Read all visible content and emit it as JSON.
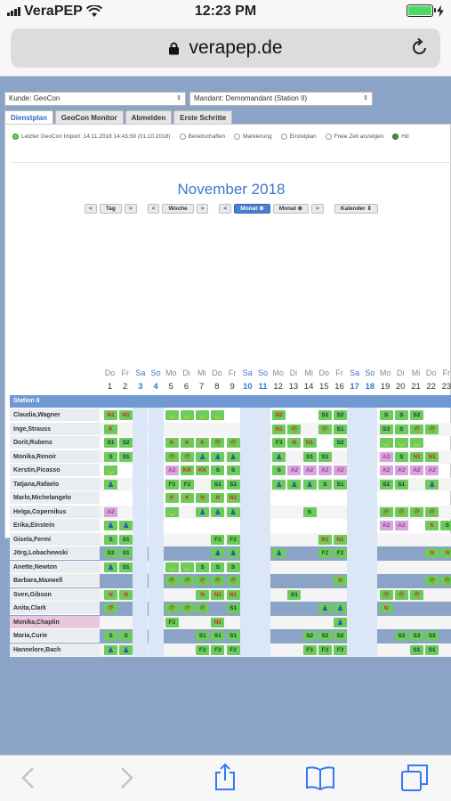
{
  "status_bar": {
    "carrier": "VeraPEP",
    "time": "12:23 PM"
  },
  "browser": {
    "url": "verapep.de"
  },
  "filters": {
    "kunde": "Kunde: GeoCon",
    "mandant": "Mandant: Demomandant (Station II)"
  },
  "tabs": [
    "Dienstplan",
    "GeoCon Monitor",
    "Abmelden",
    "Erste Schritte"
  ],
  "legend": {
    "import": "Letzter GeoCon Import: 14.11.2018 14:43:59 (01.10.2018)",
    "items": [
      "Bereitschaften",
      "Markierung",
      "Einzelplan",
      "Freie Zeit anzeigen",
      "Hd"
    ]
  },
  "calendar": {
    "month": "November 2018",
    "nav": [
      "Tag",
      "Woche",
      "Monat",
      "Monat",
      "Kalender"
    ]
  },
  "days": [
    {
      "n": "1",
      "d": "Do"
    },
    {
      "n": "2",
      "d": "Fr"
    },
    {
      "n": "3",
      "d": "Sa"
    },
    {
      "n": "4",
      "d": "So"
    },
    {
      "n": "5",
      "d": "Mo"
    },
    {
      "n": "6",
      "d": "Di"
    },
    {
      "n": "7",
      "d": "Mi"
    },
    {
      "n": "8",
      "d": "Do"
    },
    {
      "n": "9",
      "d": "Fr"
    },
    {
      "n": "10",
      "d": "Sa"
    },
    {
      "n": "11",
      "d": "So"
    },
    {
      "n": "12",
      "d": "Mo"
    },
    {
      "n": "13",
      "d": "Di"
    },
    {
      "n": "14",
      "d": "Mi"
    },
    {
      "n": "15",
      "d": "Do"
    },
    {
      "n": "16",
      "d": "Fr"
    },
    {
      "n": "17",
      "d": "Sa"
    },
    {
      "n": "18",
      "d": "So"
    },
    {
      "n": "19",
      "d": "Mo"
    },
    {
      "n": "20",
      "d": "Di"
    },
    {
      "n": "21",
      "d": "Mi"
    },
    {
      "n": "22",
      "d": "Do"
    },
    {
      "n": "23",
      "d": "Fr"
    }
  ],
  "station": "Station II",
  "colors": {
    "green": "#6ccb5a",
    "red_text": "#d22",
    "purple_text": "#b0309e",
    "purple_bg": "#d4a6d9",
    "accent": "#3a78c9"
  },
  "employees": [
    {
      "name": "Claudia,Wagner",
      "cells": [
        "",
        "N1",
        "N1",
        "",
        "c",
        "c",
        "c",
        "c",
        "c",
        "",
        "",
        "N2",
        "N2",
        "",
        "",
        "S1",
        "S2",
        "S3",
        "S1",
        "S",
        "S",
        "S2",
        "",
        ""
      ]
    },
    {
      "name": "Inge,Strauss",
      "cells": [
        "",
        "K",
        "",
        "",
        "",
        "",
        "",
        "",
        "",
        "",
        "",
        "N",
        "N1",
        "p",
        "",
        "p",
        "S1",
        "S",
        "S2",
        "S3",
        "S",
        "p",
        "p",
        ""
      ]
    },
    {
      "name": "Dorit,Rubens",
      "cells": [
        "",
        "S1",
        "S2",
        "",
        "p",
        "K",
        "K",
        "K",
        "p",
        "p",
        "",
        "F2",
        "F3",
        "N",
        "N1",
        "",
        "S2",
        "",
        "",
        "c",
        "c",
        "c",
        "",
        ""
      ]
    },
    {
      "name": "Monika,Renoir",
      "cells": [
        "",
        "S",
        "S1",
        "",
        "p",
        "p",
        "p",
        "b",
        "b",
        "b",
        "b",
        "b",
        "b",
        "",
        "S1",
        "S1",
        "",
        "",
        "",
        "A2",
        "S",
        "N1",
        "N1",
        ""
      ]
    },
    {
      "name": "Kerstin,Picasso",
      "cells": [
        "",
        "c",
        "",
        "",
        "",
        "A2",
        "KK",
        "KK",
        "S",
        "S",
        "S",
        "S",
        "S",
        "A2",
        "A2",
        "A2",
        "A2",
        "",
        "",
        "A2",
        "A2",
        "A2",
        "A2",
        ""
      ]
    },
    {
      "name": "Tatjana,Rafaelo",
      "cells": [
        "",
        "b",
        "",
        "",
        "F2",
        "F3",
        "F2",
        "",
        "S1",
        "S2",
        "",
        "",
        "b",
        "b",
        "b",
        "S",
        "S1",
        "",
        "",
        "S2",
        "S1",
        "",
        "b",
        ""
      ]
    },
    {
      "name": "Marlo,Michelangelo",
      "cells": [
        "",
        "",
        "",
        "",
        "",
        "K",
        "K",
        "N",
        "N",
        "N1",
        "",
        "",
        "",
        "",
        "",
        "",
        "",
        "F2",
        "",
        "",
        "",
        "",
        "",
        ""
      ]
    },
    {
      "name": "Helga,Copernikus",
      "cells": [
        "",
        "A2",
        "",
        "",
        "c",
        "c",
        "",
        "b",
        "b",
        "b",
        "b",
        "b",
        "",
        "",
        "S",
        "",
        "",
        "",
        "",
        "p",
        "p",
        "p",
        "p",
        ""
      ]
    },
    {
      "name": "Erika,Einstein",
      "cells": [
        "",
        "b",
        "b",
        "b",
        "b",
        "",
        "",
        "",
        "",
        "",
        "",
        "",
        "",
        "",
        "",
        "",
        "",
        "",
        "",
        "A2",
        "A2",
        "",
        "K",
        "S"
      ]
    },
    {
      "name": "Gisela,Fermi",
      "cells": [
        "",
        "S",
        "S1",
        "S2",
        "S3",
        "",
        "",
        "",
        "F2",
        "F2",
        "F2",
        "F2",
        "",
        "",
        "",
        "N1",
        "N1",
        "N2",
        "",
        "",
        "",
        "",
        "",
        ""
      ]
    },
    {
      "name": "Jörg,Lobachewski",
      "cells": [
        "",
        "S3",
        "S1",
        "",
        "",
        "",
        "",
        "",
        "b",
        "b",
        "b",
        "b",
        "b",
        "",
        "",
        "F2",
        "F2",
        "F2",
        "F3",
        "",
        "",
        "",
        "N",
        "N"
      ]
    },
    {
      "name": "Anette,Newton",
      "cells": [
        "",
        "b",
        "S1",
        "",
        "",
        "c",
        "c",
        "S",
        "S",
        "S",
        "S1",
        "",
        "",
        "",
        "",
        "",
        "",
        "",
        "",
        "",
        "",
        "",
        "",
        ""
      ]
    },
    {
      "name": "Barbara,Maxwell",
      "cells": [
        "",
        "",
        "",
        "",
        "p",
        "p",
        "p",
        "p",
        "p",
        "p",
        "",
        "",
        "",
        "",
        "",
        "",
        "N",
        "N",
        "",
        "",
        "",
        "",
        "p",
        "p"
      ]
    },
    {
      "name": "Sven,Gibson",
      "cells": [
        "",
        "N",
        "N",
        "N",
        "N",
        "",
        "",
        "N",
        "N1",
        "N1",
        "N1",
        "N2",
        "",
        "S1",
        "",
        "",
        "",
        "",
        "",
        "p",
        "p",
        "p",
        "",
        ""
      ]
    },
    {
      "name": "Anita,Clark",
      "cells": [
        "",
        "p",
        "",
        "",
        "",
        "p",
        "p",
        "p",
        "",
        "S1",
        "S1",
        "S2",
        "",
        "",
        "",
        "b",
        "b",
        "F2",
        "",
        "N",
        "",
        "",
        "",
        ""
      ]
    },
    {
      "name": "Monika,Chaplin",
      "cells": [
        "",
        "",
        "",
        "F3",
        "F3",
        "F3",
        "",
        "",
        "N1",
        "",
        "N2",
        "",
        "",
        "",
        "",
        "",
        "b",
        "b",
        "",
        "",
        "",
        "",
        "",
        ""
      ],
      "highlight": true
    },
    {
      "name": "Maria,Curie",
      "cells": [
        "",
        "S",
        "S",
        "S",
        "",
        "",
        "",
        "S1",
        "S1",
        "S1",
        "S1",
        "S2",
        "",
        "",
        "S2",
        "S2",
        "S2",
        "S2",
        "S2",
        "",
        "S3",
        "S3",
        "S3",
        ""
      ]
    },
    {
      "name": "Hannelore,Bach",
      "cells": [
        "",
        "b",
        "b",
        "b",
        "b",
        "",
        "",
        "F2",
        "F2",
        "F2",
        "F2",
        "F2",
        "",
        "",
        "F3",
        "F3",
        "F3",
        "F3",
        "F3",
        "",
        "",
        "S1",
        "S1",
        ""
      ]
    }
  ]
}
